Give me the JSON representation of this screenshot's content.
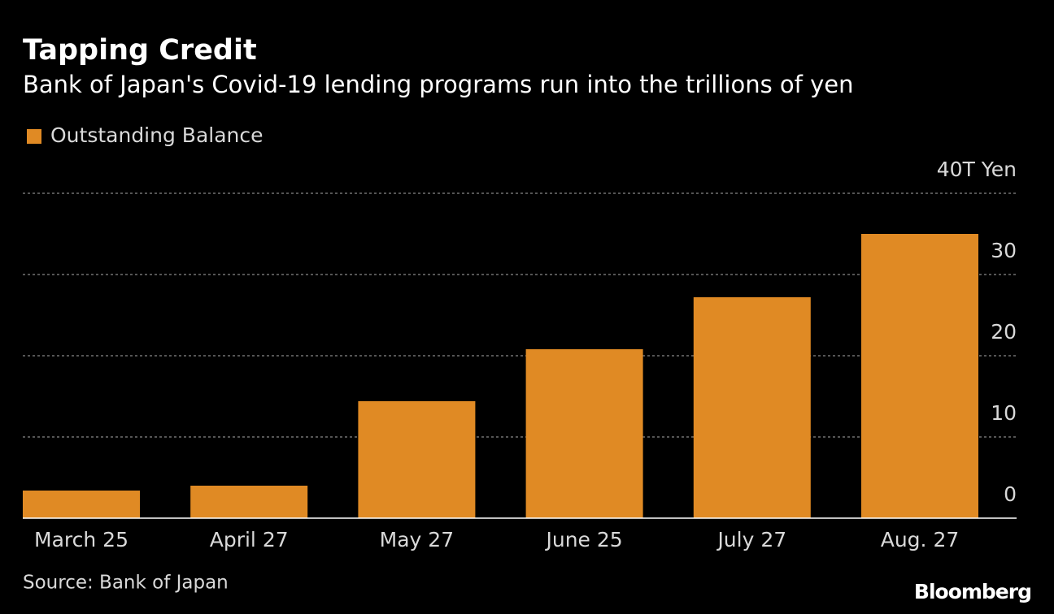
{
  "chart_data": {
    "type": "bar",
    "title": "Tapping Credit",
    "subtitle": "Bank of Japan's Covid-19 lending programs run into the trillions of yen",
    "categories": [
      "March 25",
      "April 27",
      "May 27",
      "June 25",
      "July 27",
      "Aug. 27"
    ],
    "series": [
      {
        "name": "Outstanding Balance",
        "color": "#e08a24",
        "values": [
          3.4,
          4.0,
          14.4,
          20.8,
          27.2,
          35.0
        ]
      }
    ],
    "ylim": [
      0,
      40
    ],
    "yticks": [
      0,
      10,
      20,
      30,
      {
        "value": 40,
        "label": "40T Yen"
      }
    ],
    "grid": true,
    "source": "Source: Bank of Japan",
    "logo": "Bloomberg"
  }
}
